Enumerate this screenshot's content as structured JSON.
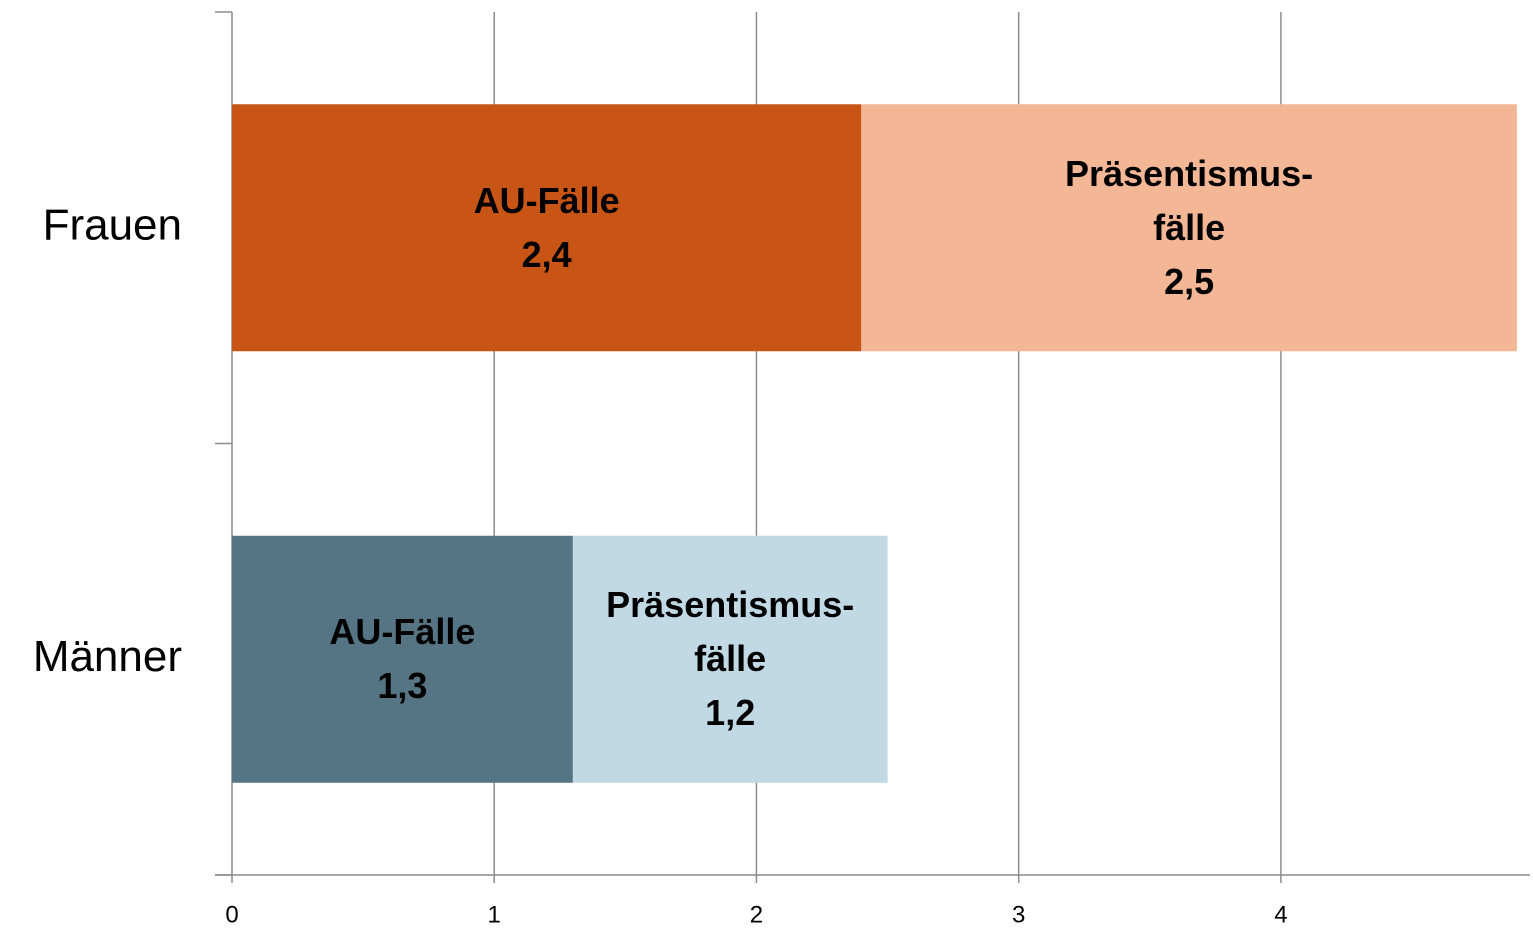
{
  "chart_data": {
    "type": "stacked-barh",
    "categories": [
      "Frauen",
      "Männer"
    ],
    "series": [
      {
        "name": "AU-Fälle",
        "colors": [
          "#c85515",
          "#557484"
        ],
        "values": [
          2.4,
          1.3
        ],
        "value_labels": [
          "2,4",
          "1,3"
        ]
      },
      {
        "name": "Präsentismus-\nfälle",
        "colors": [
          "#f4b796",
          "#c1d9e5"
        ],
        "values": [
          2.5,
          1.2
        ],
        "value_labels": [
          "2,5",
          "1,2"
        ]
      }
    ],
    "xlim": [
      0,
      4.95
    ],
    "xticks": [
      0,
      1,
      2,
      3,
      4
    ],
    "grid": true
  }
}
